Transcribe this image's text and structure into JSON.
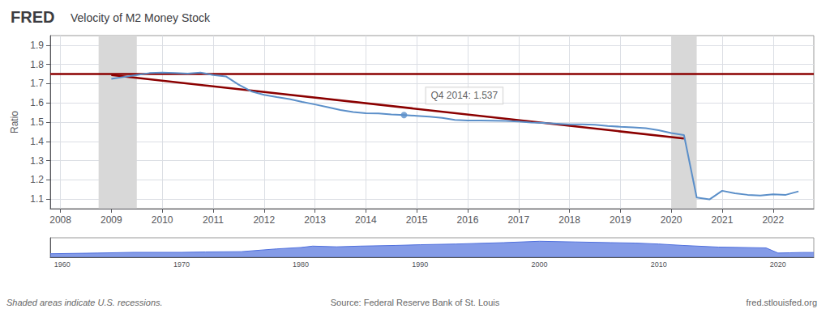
{
  "chart_data": [
    {
      "type": "line",
      "brand": "FRED",
      "title": "Velocity of M2 Money Stock",
      "ylabel": "Ratio",
      "x": [
        2009.0,
        2009.25,
        2009.5,
        2009.75,
        2010.0,
        2010.25,
        2010.5,
        2010.75,
        2011.0,
        2011.25,
        2011.5,
        2011.75,
        2012.0,
        2012.25,
        2012.5,
        2012.75,
        2013.0,
        2013.25,
        2013.5,
        2013.75,
        2014.0,
        2014.25,
        2014.5,
        2014.75,
        2015.0,
        2015.25,
        2015.5,
        2015.75,
        2016.0,
        2016.25,
        2016.5,
        2016.75,
        2017.0,
        2017.25,
        2017.5,
        2017.75,
        2018.0,
        2018.25,
        2018.5,
        2018.75,
        2019.0,
        2019.25,
        2019.5,
        2019.75,
        2020.0,
        2020.25,
        2020.5,
        2020.75,
        2021.0,
        2021.25,
        2021.5,
        2021.75,
        2022.0,
        2022.25,
        2022.5
      ],
      "values": [
        1.725,
        1.735,
        1.745,
        1.755,
        1.758,
        1.755,
        1.752,
        1.758,
        1.745,
        1.738,
        1.695,
        1.66,
        1.642,
        1.63,
        1.62,
        1.605,
        1.592,
        1.578,
        1.563,
        1.553,
        1.546,
        1.545,
        1.54,
        1.537,
        1.533,
        1.528,
        1.522,
        1.512,
        1.508,
        1.508,
        1.507,
        1.506,
        1.503,
        1.498,
        1.496,
        1.492,
        1.488,
        1.488,
        1.486,
        1.48,
        1.476,
        1.473,
        1.468,
        1.458,
        1.443,
        1.433,
        1.108,
        1.098,
        1.143,
        1.13,
        1.122,
        1.118,
        1.125,
        1.122,
        1.14
      ],
      "color": "#5b8fc9",
      "xlim": [
        2007.8,
        2022.8
      ],
      "xticks": [
        2008,
        2009,
        2010,
        2011,
        2012,
        2013,
        2014,
        2015,
        2016,
        2017,
        2018,
        2019,
        2020,
        2021,
        2022
      ],
      "ylim": [
        1.05,
        1.95
      ],
      "yticks": [
        1.1,
        1.2,
        1.3,
        1.4,
        1.5,
        1.6,
        1.7,
        1.8,
        1.9
      ],
      "grid": true,
      "shaded": {
        "ranges": [
          [
            2008.75,
            2009.5
          ],
          [
            2020.0,
            2020.5
          ]
        ],
        "color": "#d8d8d8"
      },
      "hline": {
        "y": 1.745,
        "color": "#8b0000"
      },
      "trend_line": {
        "x": [
          2009.0,
          2020.25
        ],
        "values": [
          1.745,
          1.415
        ],
        "color": "#8b0000"
      },
      "annotations": [
        {
          "x": 2014.75,
          "y": 1.537,
          "text": "Q4 2014: 1.537"
        }
      ],
      "footnotes": [
        "Shaded areas indicate U.S. recessions.",
        "Source: Federal Reserve Bank of St. Louis",
        "fred.stlouisfed.org"
      ]
    },
    {
      "type": "area",
      "x": [
        1959,
        1963,
        1966,
        1970,
        1972,
        1975,
        1978,
        1980,
        1981,
        1983,
        1985,
        1988,
        1990,
        1993,
        1997,
        2000,
        2003,
        2006,
        2008,
        2010,
        2012,
        2015,
        2019,
        2020,
        2021,
        2022,
        2023
      ],
      "values": [
        1.05,
        1.1,
        1.15,
        1.15,
        1.18,
        1.2,
        1.4,
        1.5,
        1.6,
        1.55,
        1.6,
        1.65,
        1.7,
        1.75,
        1.85,
        1.95,
        1.9,
        1.85,
        1.82,
        1.75,
        1.65,
        1.53,
        1.47,
        1.1,
        1.12,
        1.14,
        1.14
      ],
      "xlim": [
        1959,
        2023
      ],
      "xticks": [
        1960,
        1970,
        1980,
        1990,
        2000,
        2010,
        2020
      ],
      "ylim": [
        0.8,
        2.2
      ],
      "tick_labels": "x"
    }
  ]
}
